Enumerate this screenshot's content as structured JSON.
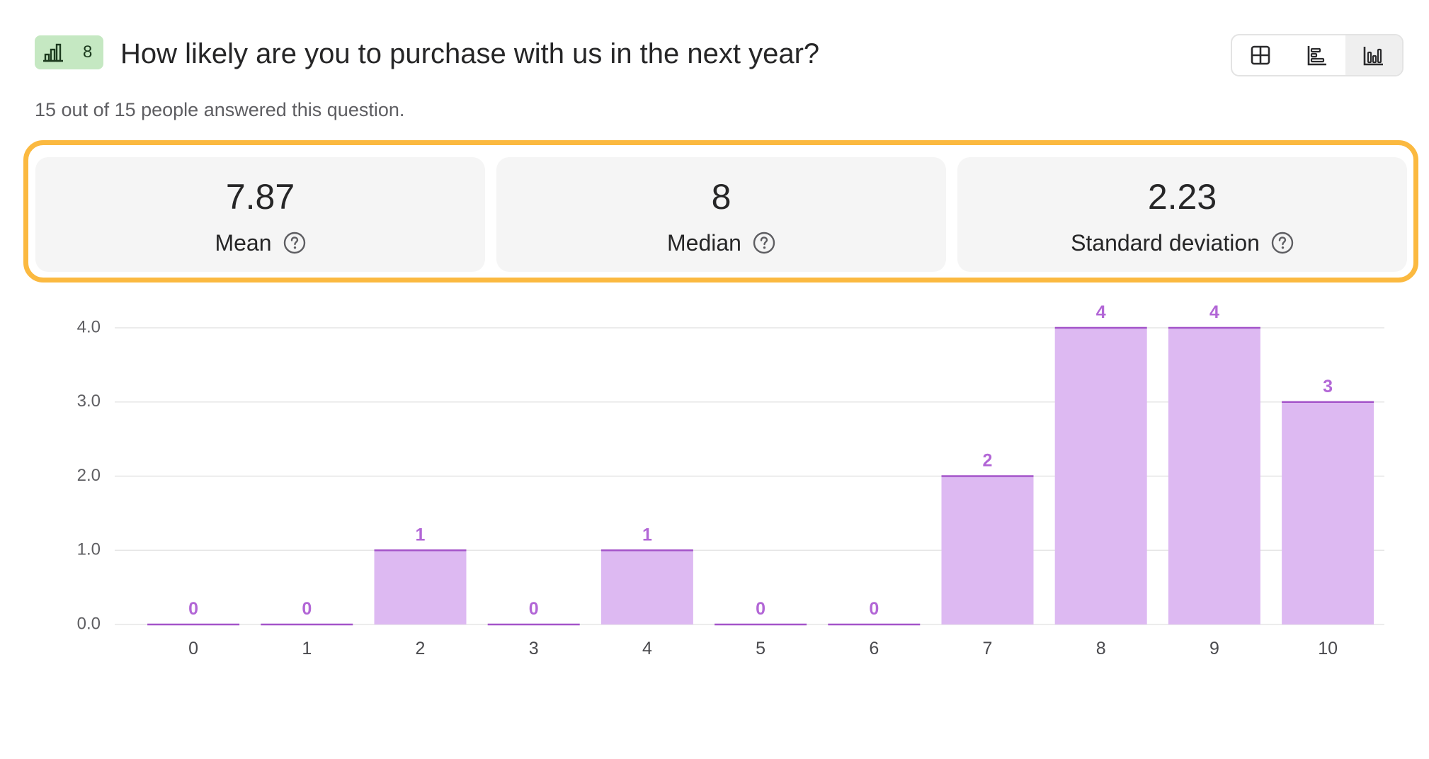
{
  "header": {
    "badge_number": "8",
    "badge_icon": "bar-chart-icon",
    "question": "How likely are you to purchase with us in the next year?",
    "subtitle": "15 out of 15 people answered this question."
  },
  "view_toggle": {
    "options": [
      {
        "name": "table-view",
        "icon": "grid-icon"
      },
      {
        "name": "horizontal-bar-view",
        "icon": "horizontal-bar-icon"
      },
      {
        "name": "vertical-bar-view",
        "icon": "vertical-bar-icon"
      }
    ],
    "active": "vertical-bar-view"
  },
  "stats": [
    {
      "value": "7.87",
      "label": "Mean"
    },
    {
      "value": "8",
      "label": "Median"
    },
    {
      "value": "2.23",
      "label": "Standard deviation"
    }
  ],
  "colors": {
    "badge_bg": "#c5e8c2",
    "highlight_border": "#fbb940",
    "bar_fill": "#ddb9f2",
    "bar_top": "#a454c9",
    "bar_label": "#b266d6"
  },
  "chart_data": {
    "type": "bar",
    "categories": [
      "0",
      "1",
      "2",
      "3",
      "4",
      "5",
      "6",
      "7",
      "8",
      "9",
      "10"
    ],
    "values": [
      0,
      0,
      1,
      0,
      1,
      0,
      0,
      2,
      4,
      4,
      3
    ],
    "data_labels": [
      "0",
      "0",
      "1",
      "0",
      "1",
      "0",
      "0",
      "2",
      "4",
      "4",
      "3"
    ],
    "yticks": [
      "0.0",
      "1.0",
      "2.0",
      "3.0",
      "4.0"
    ],
    "ylim": [
      0,
      4
    ],
    "grid": true
  }
}
